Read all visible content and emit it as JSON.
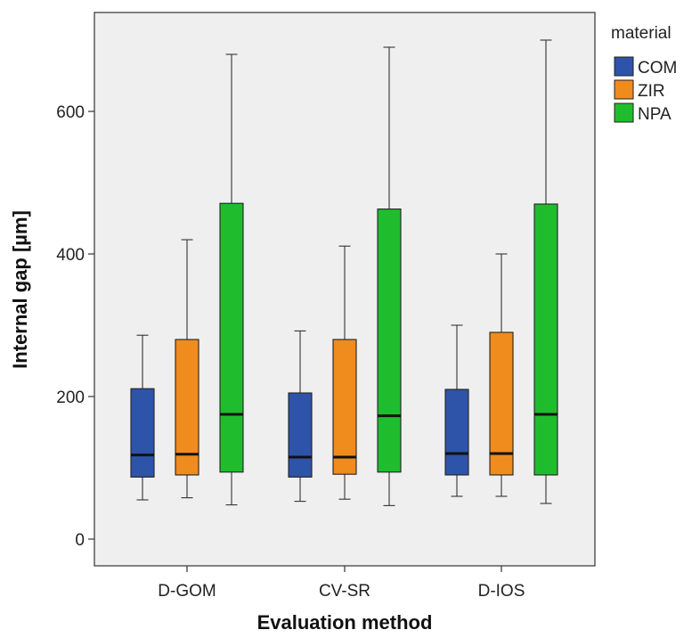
{
  "chart_data": {
    "type": "boxplot",
    "xlabel": "Evaluation method",
    "ylabel": "Internal gap [µm]",
    "ylim": [
      -40,
      740
    ],
    "yticks": [
      0,
      200,
      400,
      600
    ],
    "categories": [
      "D-GOM",
      "CV-SR",
      "D-IOS"
    ],
    "legend": {
      "title": "material",
      "placement": "right"
    },
    "series": [
      {
        "name": "COM",
        "color": "#2d54a8",
        "boxes": [
          {
            "min": 55,
            "q1": 87,
            "median": 118,
            "q3": 211,
            "max": 286
          },
          {
            "min": 53,
            "q1": 87,
            "median": 115,
            "q3": 205,
            "max": 292
          },
          {
            "min": 60,
            "q1": 90,
            "median": 120,
            "q3": 210,
            "max": 300
          }
        ]
      },
      {
        "name": "ZIR",
        "color": "#f08b1e",
        "boxes": [
          {
            "min": 58,
            "q1": 90,
            "median": 119,
            "q3": 280,
            "max": 420
          },
          {
            "min": 56,
            "q1": 91,
            "median": 115,
            "q3": 280,
            "max": 411
          },
          {
            "min": 60,
            "q1": 90,
            "median": 120,
            "q3": 290,
            "max": 400
          }
        ]
      },
      {
        "name": "NPA",
        "color": "#1fbd2e",
        "boxes": [
          {
            "min": 48,
            "q1": 94,
            "median": 175,
            "q3": 471,
            "max": 680
          },
          {
            "min": 47,
            "q1": 94,
            "median": 173,
            "q3": 463,
            "max": 690
          },
          {
            "min": 50,
            "q1": 90,
            "median": 175,
            "q3": 470,
            "max": 700
          }
        ]
      }
    ]
  }
}
